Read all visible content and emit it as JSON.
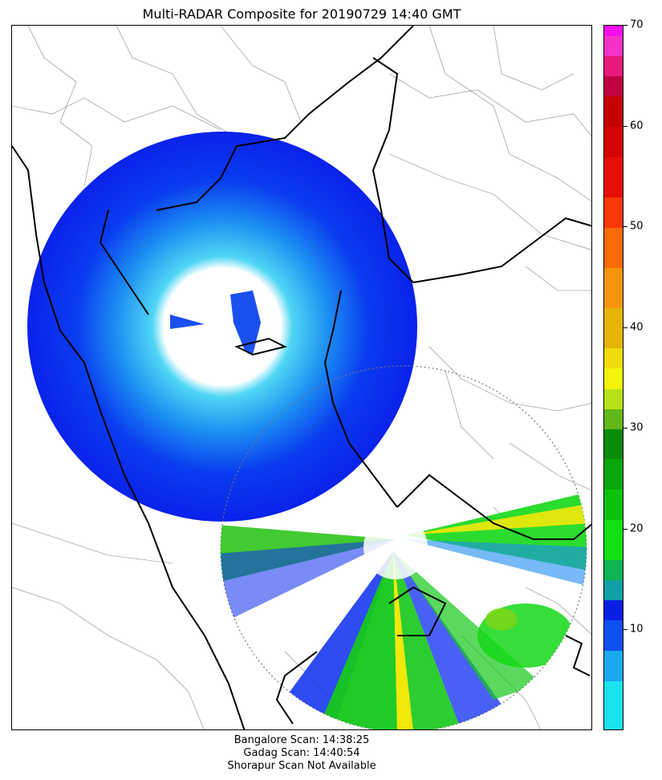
{
  "title": "Multi-RADAR Composite for 20190729 14:40 GMT",
  "colorbar": {
    "min": 0,
    "max": 70,
    "ticks": [
      "10",
      "20",
      "30",
      "40",
      "50",
      "60",
      "70"
    ],
    "tick_values": [
      10,
      20,
      30,
      40,
      50,
      60,
      70
    ],
    "stops": [
      {
        "from": 0,
        "to": 5,
        "color": "#19e3ee"
      },
      {
        "from": 5,
        "to": 8,
        "color": "#1aa9f0"
      },
      {
        "from": 8,
        "to": 11,
        "color": "#0e4ff0"
      },
      {
        "from": 11,
        "to": 13,
        "color": "#0a1fe6"
      },
      {
        "from": 13,
        "to": 15,
        "color": "#10a0a6"
      },
      {
        "from": 15,
        "to": 17,
        "color": "#0fb454"
      },
      {
        "from": 17,
        "to": 21,
        "color": "#13e012"
      },
      {
        "from": 21,
        "to": 24,
        "color": "#0cc20c"
      },
      {
        "from": 24,
        "to": 27,
        "color": "#09a70a"
      },
      {
        "from": 27,
        "to": 30,
        "color": "#078d09"
      },
      {
        "from": 30,
        "to": 32,
        "color": "#62b71a"
      },
      {
        "from": 32,
        "to": 34,
        "color": "#b7e219"
      },
      {
        "from": 34,
        "to": 36,
        "color": "#f4f40c"
      },
      {
        "from": 36,
        "to": 38,
        "color": "#f0dc0a"
      },
      {
        "from": 38,
        "to": 42,
        "color": "#e7b406"
      },
      {
        "from": 42,
        "to": 46,
        "color": "#f5950b"
      },
      {
        "from": 46,
        "to": 50,
        "color": "#fb6a06"
      },
      {
        "from": 50,
        "to": 53,
        "color": "#f93807"
      },
      {
        "from": 53,
        "to": 57,
        "color": "#e60f06"
      },
      {
        "from": 57,
        "to": 60,
        "color": "#d40404"
      },
      {
        "from": 60,
        "to": 63,
        "color": "#c40000"
      },
      {
        "from": 63,
        "to": 65,
        "color": "#c20040"
      },
      {
        "from": 65,
        "to": 67,
        "color": "#e8197c"
      },
      {
        "from": 67,
        "to": 69,
        "color": "#f532c8"
      },
      {
        "from": 69,
        "to": 70,
        "color": "#f50ff0"
      }
    ]
  },
  "radars": [
    {
      "name": "Gadag",
      "coverage_color": "#0b2cf0",
      "inner_color": "#39c6f5"
    },
    {
      "name": "Bangalore",
      "coverage_color": "#12d21a",
      "inner_color": "#ffffff"
    }
  ],
  "scan_info": [
    "Bangalore Scan: 14:38:25",
    "Gadag Scan: 14:40:54",
    "Shorapur Scan Not Available"
  ]
}
